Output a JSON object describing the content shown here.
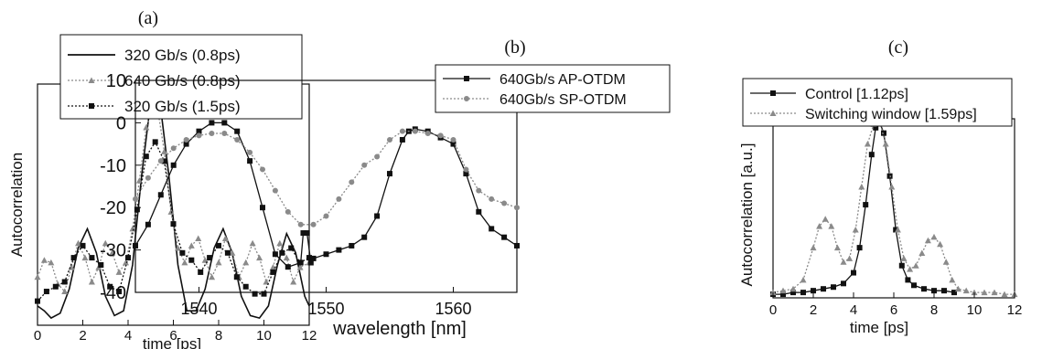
{
  "panels": [
    {
      "label": "(a)",
      "chart_data": {
        "type": "line",
        "xlabel": "time [ps]",
        "ylabel": "Autocorrelation",
        "xlim": [
          0,
          12
        ],
        "ylim": [
          0,
          1
        ],
        "xticks": [
          "0",
          "2",
          "4",
          "6",
          "8",
          "10",
          "12"
        ],
        "yticks": [],
        "grid": false,
        "legend_position": "top",
        "series": [
          {
            "name": "320 Gb/s (0.8ps)",
            "style": "solid",
            "color": "#111111",
            "x": [
              0.0,
              0.3,
              0.6,
              1.0,
              1.4,
              1.8,
              2.2,
              2.6,
              3.0,
              3.4,
              3.8,
              4.2,
              4.6,
              5.0,
              5.2,
              5.4,
              5.8,
              6.2,
              6.6,
              7.0,
              7.4,
              7.8,
              8.2,
              8.6,
              9.0,
              9.4,
              9.8,
              10.2,
              10.6,
              11.0,
              11.4,
              11.8,
              12.0
            ],
            "y": [
              0.08,
              0.06,
              0.03,
              0.05,
              0.15,
              0.32,
              0.4,
              0.3,
              0.12,
              0.04,
              0.06,
              0.25,
              0.62,
              0.93,
              0.98,
              0.93,
              0.62,
              0.25,
              0.06,
              0.06,
              0.15,
              0.32,
              0.4,
              0.3,
              0.12,
              0.04,
              0.03,
              0.08,
              0.25,
              0.38,
              0.3,
              0.12,
              0.08
            ]
          },
          {
            "name": "640 Gb/s (0.8ps)",
            "style": "dotted-triangle",
            "color": "#8a8a8a",
            "x": [
              0.0,
              0.3,
              0.6,
              0.9,
              1.2,
              1.5,
              1.8,
              2.1,
              2.4,
              2.7,
              3.0,
              3.3,
              3.6,
              3.9,
              4.2,
              4.5,
              4.8,
              5.1,
              5.3,
              5.6,
              5.9,
              6.2,
              6.5,
              6.8,
              7.1,
              7.4,
              7.7,
              8.0,
              8.3,
              8.6,
              8.9,
              9.2,
              9.5,
              9.8,
              10.1,
              10.4,
              10.7,
              11.0,
              11.3,
              11.6,
              12.0
            ],
            "y": [
              0.2,
              0.27,
              0.26,
              0.17,
              0.14,
              0.24,
              0.34,
              0.28,
              0.18,
              0.24,
              0.34,
              0.3,
              0.22,
              0.26,
              0.4,
              0.6,
              0.82,
              0.91,
              0.9,
              0.72,
              0.47,
              0.32,
              0.26,
              0.33,
              0.36,
              0.27,
              0.2,
              0.26,
              0.36,
              0.3,
              0.2,
              0.26,
              0.34,
              0.28,
              0.18,
              0.24,
              0.34,
              0.28,
              0.18,
              0.24,
              0.26
            ]
          },
          {
            "name": "320 Gb/s (1.5ps)",
            "style": "dotted-square",
            "color": "#111111",
            "x": [
              0.0,
              0.4,
              0.8,
              1.2,
              1.6,
              2.0,
              2.4,
              2.8,
              3.2,
              3.6,
              4.0,
              4.4,
              4.8,
              5.2,
              5.6,
              6.0,
              6.4,
              6.8,
              7.2,
              7.6,
              8.0,
              8.4,
              8.8,
              9.2,
              9.6,
              10.0,
              10.4,
              10.8,
              11.2,
              11.6,
              12.0
            ],
            "y": [
              0.1,
              0.14,
              0.16,
              0.18,
              0.28,
              0.33,
              0.28,
              0.25,
              0.16,
              0.14,
              0.28,
              0.48,
              0.7,
              0.76,
              0.68,
              0.42,
              0.3,
              0.27,
              0.22,
              0.28,
              0.33,
              0.3,
              0.2,
              0.16,
              0.13,
              0.13,
              0.22,
              0.3,
              0.32,
              0.26,
              0.28
            ]
          }
        ]
      }
    },
    {
      "label": "(b)",
      "chart_data": {
        "type": "line",
        "xlabel": "wavelength [nm]",
        "ylabel": "",
        "xlim": [
          1535,
          1565
        ],
        "ylim": [
          -40,
          10
        ],
        "xticks": [
          "1540",
          "1550",
          "1560"
        ],
        "yticks": [
          "10",
          "0",
          "-10",
          "-20",
          "-30",
          "-40"
        ],
        "grid": false,
        "legend_position": "top-right",
        "series": [
          {
            "name": "640Gb/s AP-OTDM",
            "style": "square",
            "color": "#111111",
            "x": [
              1535,
              1536,
              1537,
              1538,
              1539,
              1540,
              1541,
              1542,
              1543,
              1544,
              1545,
              1546,
              1547,
              1548,
              1548.2,
              1548.5,
              1548.8,
              1549,
              1550,
              1551,
              1552,
              1553,
              1554,
              1555,
              1556,
              1556.5,
              1557,
              1558,
              1559,
              1560,
              1561,
              1562,
              1563,
              1564,
              1565
            ],
            "y": [
              -29,
              -24,
              -17,
              -10,
              -5,
              -2,
              0,
              0,
              -2,
              -9,
              -20,
              -31,
              -34,
              -33,
              -26,
              -26,
              -33,
              -32,
              -31,
              -30,
              -29,
              -27,
              -22,
              -12,
              -4,
              -2,
              -1.5,
              -2,
              -3.5,
              -5,
              -12,
              -21,
              -25,
              -27,
              -29
            ]
          },
          {
            "name": "640Gb/s SP-OTDM",
            "style": "dotted-circle",
            "color": "#8a8a8a",
            "x": [
              1535,
              1536,
              1537,
              1538,
              1539,
              1540,
              1541,
              1542,
              1543,
              1544,
              1545,
              1546,
              1547,
              1548,
              1549,
              1550,
              1551,
              1552,
              1553,
              1554,
              1555,
              1556,
              1557,
              1558,
              1559,
              1560,
              1561,
              1562,
              1563,
              1564,
              1565
            ],
            "y": [
              -18,
              -13,
              -9,
              -6,
              -4,
              -3,
              -2.5,
              -2.5,
              -4,
              -7,
              -11,
              -16,
              -21,
              -24,
              -24,
              -22,
              -18,
              -14,
              -10,
              -8,
              -4,
              -2,
              -2,
              -2.5,
              -3,
              -4,
              -11,
              -16,
              -18,
              -19,
              -20
            ]
          }
        ]
      }
    },
    {
      "label": "(c)",
      "chart_data": {
        "type": "line",
        "xlabel": "time [ps]",
        "ylabel": "Autocorrelation [a.u.]",
        "xlim": [
          0,
          12
        ],
        "ylim": [
          0,
          1
        ],
        "xticks": [
          "0",
          "2",
          "4",
          "6",
          "8",
          "10",
          "12"
        ],
        "yticks": [],
        "grid": false,
        "legend_position": "top",
        "series": [
          {
            "name": "Control [1.12ps]",
            "style": "square",
            "color": "#111111",
            "x": [
              0.0,
              0.5,
              1.0,
              1.5,
              2.0,
              2.5,
              3.0,
              3.5,
              4.0,
              4.3,
              4.6,
              4.9,
              5.1,
              5.3,
              5.5,
              5.8,
              6.1,
              6.4,
              6.7,
              7.0,
              7.5,
              8.0,
              8.5,
              9.0
            ],
            "y": [
              0.02,
              0.02,
              0.03,
              0.03,
              0.04,
              0.05,
              0.06,
              0.08,
              0.14,
              0.28,
              0.52,
              0.8,
              0.95,
              0.98,
              0.92,
              0.68,
              0.38,
              0.18,
              0.1,
              0.07,
              0.05,
              0.04,
              0.04,
              0.03
            ]
          },
          {
            "name": "Switching window [1.59ps]",
            "style": "dotted-triangle",
            "color": "#8a8a8a",
            "x": [
              0.0,
              0.5,
              1.0,
              1.5,
              2.0,
              2.3,
              2.6,
              2.9,
              3.2,
              3.5,
              3.8,
              4.1,
              4.4,
              4.7,
              5.0,
              5.3,
              5.6,
              5.9,
              6.2,
              6.5,
              6.8,
              7.1,
              7.4,
              7.7,
              8.0,
              8.3,
              8.6,
              8.9,
              9.2,
              9.6,
              10.0,
              10.5,
              11.0,
              11.5,
              12.0
            ],
            "y": [
              0.03,
              0.04,
              0.05,
              0.1,
              0.28,
              0.4,
              0.44,
              0.4,
              0.28,
              0.2,
              0.22,
              0.38,
              0.62,
              0.86,
              0.97,
              0.98,
              0.86,
              0.62,
              0.38,
              0.22,
              0.16,
              0.18,
              0.25,
              0.32,
              0.34,
              0.3,
              0.2,
              0.1,
              0.05,
              0.04,
              0.03,
              0.03,
              0.03,
              0.02,
              0.02
            ]
          }
        ]
      }
    }
  ]
}
